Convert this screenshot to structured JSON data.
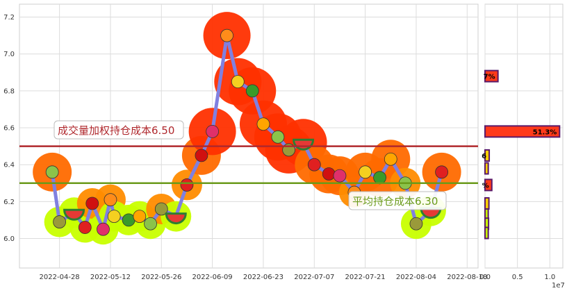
{
  "chart_data": [
    {
      "type": "line",
      "title": "",
      "xlabel": "",
      "ylabel": "",
      "x_ticks": [
        "2022-04-28",
        "2022-05-12",
        "2022-05-26",
        "2022-06-09",
        "2022-06-23",
        "2022-07-07",
        "2022-07-21",
        "2022-08-04",
        "2022-08-18"
      ],
      "y_ticks": [
        "6.0",
        "6.2",
        "6.4",
        "6.6",
        "6.8",
        "7.0",
        "7.2"
      ],
      "xlim": [
        "2022-04-17",
        "2022-08-21"
      ],
      "ylim": [
        5.84,
        7.27
      ],
      "grid": true,
      "series": [
        {
          "type": "price",
          "color": "#8080e0",
          "x": [
            "2022-04-26",
            "2022-04-28",
            "2022-05-02",
            "2022-05-05",
            "2022-05-07",
            "2022-05-10",
            "2022-05-12",
            "2022-05-13",
            "2022-05-17",
            "2022-05-20",
            "2022-05-23",
            "2022-05-26",
            "2022-05-30",
            "2022-06-02",
            "2022-06-06",
            "2022-06-09",
            "2022-06-13",
            "2022-06-16",
            "2022-06-20",
            "2022-06-23",
            "2022-06-27",
            "2022-06-30",
            "2022-07-04",
            "2022-07-07",
            "2022-07-11",
            "2022-07-14",
            "2022-07-18",
            "2022-07-21",
            "2022-07-25",
            "2022-07-28",
            "2022-08-01",
            "2022-08-04",
            "2022-08-08",
            "2022-08-11"
          ],
          "values": [
            6.36,
            6.09,
            6.14,
            6.06,
            6.19,
            6.05,
            6.21,
            6.12,
            6.1,
            6.12,
            6.08,
            6.16,
            6.12,
            6.29,
            6.45,
            6.58,
            7.1,
            6.85,
            6.8,
            6.62,
            6.55,
            6.48,
            6.52,
            6.4,
            6.35,
            6.34,
            6.25,
            6.36,
            6.33,
            6.43,
            6.3,
            6.08,
            6.15,
            6.36
          ]
        }
      ],
      "markers": [
        "kiwi",
        "pear",
        "watermelon",
        "strawberry",
        "apple",
        "radish",
        "carrot",
        "banana",
        "peas",
        "orange"
      ],
      "reference_lines": [
        {
          "label": "成交量加权持仓成本6.50",
          "value": 6.5,
          "color": "#b0282d"
        },
        {
          "label": "平均持仓成本6.30",
          "value": 6.3,
          "color": "#6a9a1a"
        }
      ]
    },
    {
      "type": "bar",
      "orientation": "horizontal",
      "x_ticks": [
        "0.0",
        "0.5",
        "1.0"
      ],
      "x_multiplier": "1e7",
      "xlim": [
        0,
        12000000.0
      ],
      "bar_color": "#ff3a1a",
      "bar_edge": "#5a1a6a",
      "bars": [
        {
          "price": 6.88,
          "value": 2000000.0,
          "label": "7%"
        },
        {
          "price": 6.58,
          "value": 11500000.0,
          "label": "51.3%"
        },
        {
          "price": 6.45,
          "value": 650000.0,
          "label": "6"
        },
        {
          "price": 6.38,
          "value": 500000.0,
          "label": ""
        },
        {
          "price": 6.29,
          "value": 1050000.0,
          "label": "%"
        },
        {
          "price": 6.19,
          "value": 600000.0,
          "label": ""
        },
        {
          "price": 6.13,
          "value": 500000.0,
          "label": ""
        },
        {
          "price": 6.08,
          "value": 550000.0,
          "label": ""
        },
        {
          "price": 6.03,
          "value": 500000.0,
          "label": ""
        }
      ]
    }
  ]
}
